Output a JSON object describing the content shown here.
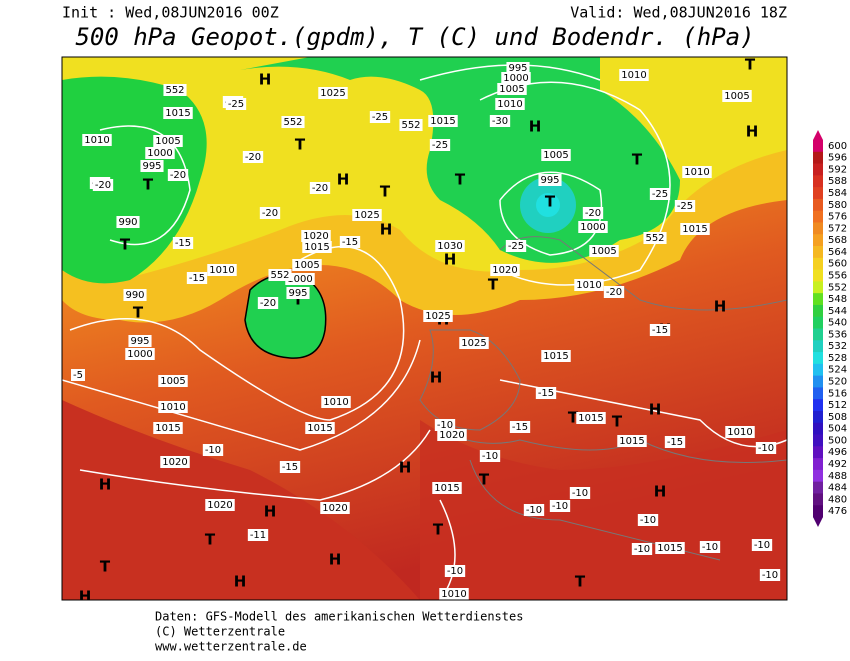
{
  "header": {
    "init": "Init : Wed,08JUN2016 00Z",
    "valid": "Valid: Wed,08JUN2016 18Z",
    "title": "500 hPa Geopot.(gpdm), T (C) und Bodendr. (hPa)"
  },
  "map": {
    "pressure_centers": [
      "H",
      "T",
      "H",
      "H",
      "T",
      "T",
      "T",
      "T",
      "T",
      "T",
      "T",
      "H",
      "H",
      "H",
      "T",
      "H",
      "H",
      "H",
      "H",
      "T",
      "T",
      "H",
      "H",
      "T",
      "H",
      "H",
      "H",
      "T",
      "T",
      "H",
      "H",
      "T",
      "T",
      "H",
      "T",
      "T"
    ],
    "isobar_labels": [
      "1010",
      "1005",
      "1000",
      "995",
      "990",
      "990",
      "995",
      "1000",
      "1005",
      "1010",
      "1015",
      "1020",
      "1020",
      "1020",
      "1015",
      "1010",
      "1005",
      "1000",
      "995",
      "1010",
      "1015",
      "1020",
      "1025",
      "1030",
      "1025",
      "1015",
      "1010",
      "1005",
      "1000",
      "995",
      "1005",
      "995",
      "1000",
      "1005",
      "1010",
      "1020",
      "1025",
      "1025",
      "1015",
      "1015",
      "1015",
      "1010",
      "1015",
      "1010",
      "1005",
      "1010",
      "1015",
      "1020",
      "1015",
      "1010",
      "552",
      "552",
      "552",
      "552",
      "552",
      "1015"
    ],
    "temperature_labels": [
      "-20",
      "-25",
      "-20",
      "-20",
      "-20",
      "-20",
      "-20",
      "-15",
      "-15",
      "-15",
      "-25",
      "-25",
      "-30",
      "-25",
      "-20",
      "-25",
      "-25",
      "-20",
      "-15",
      "-5",
      "-10",
      "-15",
      "-15",
      "-15",
      "-15",
      "-10",
      "-10",
      "-10",
      "-10",
      "-10",
      "-10",
      "-10",
      "-10",
      "-10",
      "-10",
      "-10",
      "-10",
      "-11",
      "-20",
      "-25"
    ]
  },
  "colorbar": {
    "levels": [
      600,
      596,
      592,
      588,
      584,
      580,
      576,
      572,
      568,
      564,
      560,
      556,
      552,
      548,
      544,
      540,
      536,
      532,
      528,
      524,
      520,
      516,
      512,
      508,
      504,
      500,
      496,
      492,
      488,
      484,
      480,
      476
    ],
    "colors": [
      "#d4006a",
      "#b41818",
      "#c82020",
      "#d83020",
      "#e04020",
      "#e85a20",
      "#f07020",
      "#f08a20",
      "#f5a020",
      "#f5b820",
      "#f5d020",
      "#f0e020",
      "#c8f020",
      "#60e020",
      "#30d040",
      "#20d060",
      "#20d090",
      "#20d0c0",
      "#20e0e0",
      "#20c0f0",
      "#2090f0",
      "#2060f0",
      "#2030f0",
      "#2020d0",
      "#3010c0",
      "#4010c0",
      "#6010c0",
      "#8020d0",
      "#9030e0",
      "#7020a0",
      "#601080",
      "#500070"
    ]
  },
  "footer": {
    "line1": "Daten: GFS-Modell des amerikanischen Wetterdienstes",
    "line2": "(C) Wetterzentrale",
    "line3": "www.wetterzentrale.de"
  }
}
